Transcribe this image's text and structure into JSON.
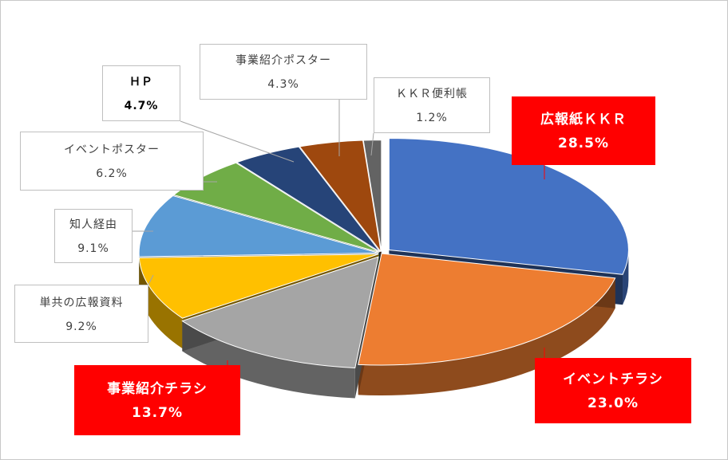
{
  "chart_data": {
    "type": "pie",
    "title": "",
    "slices": [
      {
        "label": "広報紙ＫＫＲ",
        "percent_text": "28.5%",
        "value": 28.5,
        "color": "#4472C4",
        "highlight": true
      },
      {
        "label": "イベントチラシ",
        "percent_text": "23.0%",
        "value": 23.0,
        "color": "#ED7D31",
        "highlight": true
      },
      {
        "label": "事業紹介チラシ",
        "percent_text": "13.7%",
        "value": 13.7,
        "color": "#A5A5A5",
        "highlight": true
      },
      {
        "label": "単共の広報資料",
        "percent_text": "9.2%",
        "value": 9.2,
        "color": "#FFC000",
        "highlight": false
      },
      {
        "label": "知人経由",
        "percent_text": "9.1%",
        "value": 9.1,
        "color": "#5B9BD5",
        "highlight": false
      },
      {
        "label": "イベントポスター",
        "percent_text": "6.2%",
        "value": 6.2,
        "color": "#70AD47",
        "highlight": false
      },
      {
        "label": "ＨＰ",
        "percent_text": "4.7%",
        "value": 4.7,
        "color": "#264478",
        "highlight": false
      },
      {
        "label": "事業紹介ポスター",
        "percent_text": "4.3%",
        "value": 4.3,
        "color": "#9E480E",
        "highlight": false
      },
      {
        "label": "ＫＫＲ便利帳",
        "percent_text": "1.2%",
        "value": 1.2,
        "color": "#636363",
        "highlight": false
      }
    ]
  }
}
